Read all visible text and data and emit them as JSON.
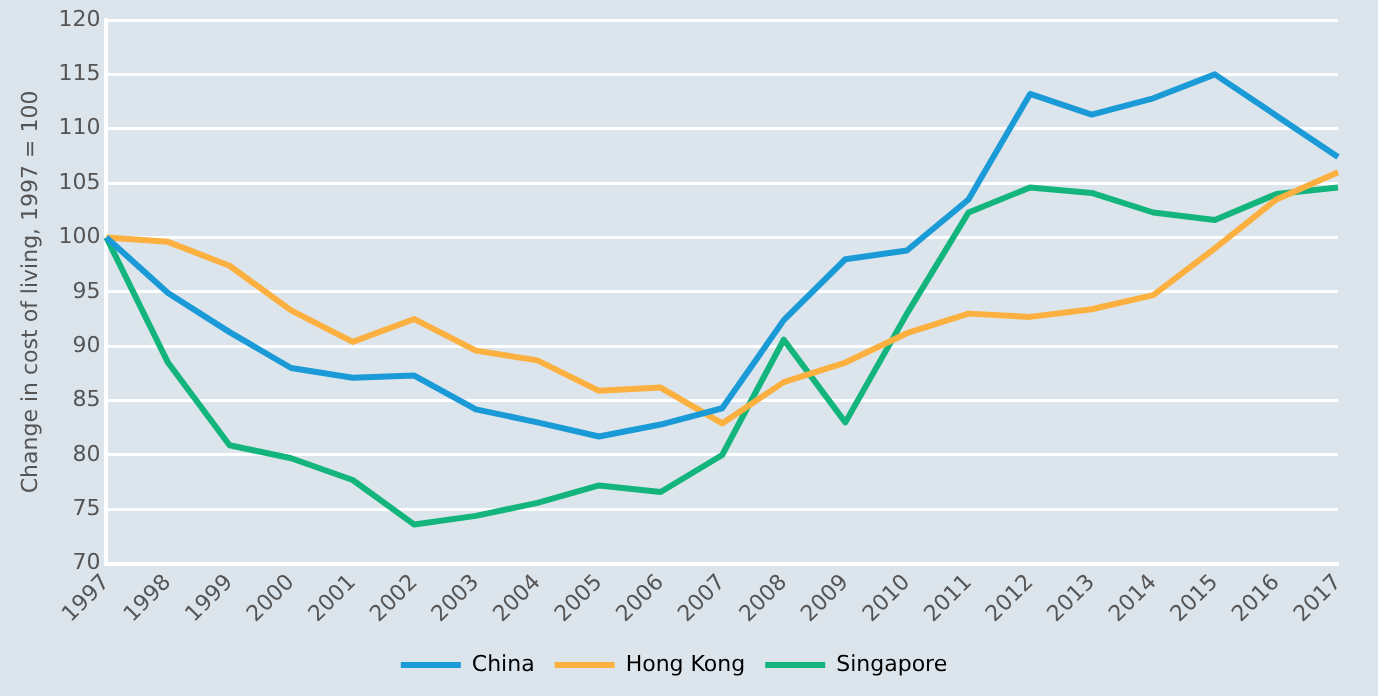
{
  "chart_data": {
    "type": "line",
    "ylabel": "Change in cost of living, 1997 = 100",
    "categories": [
      "1997",
      "1998",
      "1999",
      "2000",
      "2001",
      "2002",
      "2003",
      "2004",
      "2005",
      "2006",
      "2007",
      "2008",
      "2009",
      "2010",
      "2011",
      "2012",
      "2013",
      "2014",
      "2015",
      "2016",
      "2017"
    ],
    "series": [
      {
        "name": "China",
        "color": "#1a9ad6",
        "values": [
          100,
          94.9,
          91.3,
          88,
          87.1,
          87.3,
          84.2,
          83,
          81.7,
          82.8,
          84.3,
          92.4,
          98,
          98.8,
          103.5,
          113.2,
          111.3,
          112.8,
          115,
          111.2,
          107.4
        ]
      },
      {
        "name": "Hong Kong",
        "color": "#fbb040",
        "values": [
          100,
          99.6,
          97.4,
          93.3,
          90.4,
          92.5,
          89.6,
          88.7,
          85.9,
          86.2,
          82.9,
          86.7,
          88.5,
          91.2,
          93,
          92.7,
          93.4,
          94.7,
          99,
          103.5,
          106
        ]
      },
      {
        "name": "Singapore",
        "color": "#13b57d",
        "values": [
          100,
          88.5,
          80.9,
          79.7,
          77.7,
          73.6,
          74.4,
          75.6,
          77.2,
          76.6,
          80,
          90.6,
          83,
          93,
          102.3,
          104.6,
          104.1,
          102.3,
          101.6,
          104,
          104.6
        ]
      }
    ],
    "ylim": [
      70,
      120
    ],
    "yticks": [
      70,
      75,
      80,
      85,
      90,
      95,
      100,
      105,
      110,
      115,
      120
    ],
    "grid": "y",
    "legend": "bottom",
    "marker": "none",
    "line_style": "solid"
  }
}
